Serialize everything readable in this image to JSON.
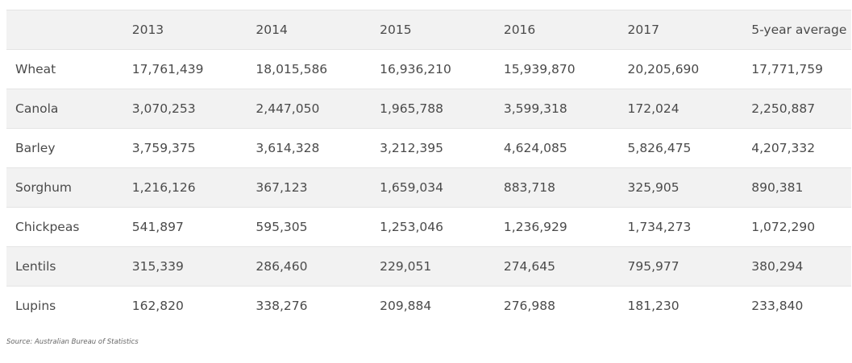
{
  "table": {
    "headers": [
      "",
      "2013",
      "2014",
      "2015",
      "2016",
      "2017",
      "5-year average"
    ],
    "rows": [
      [
        "Wheat",
        "17,761,439",
        "18,015,586",
        "16,936,210",
        "15,939,870",
        "20,205,690",
        "17,771,759"
      ],
      [
        "Canola",
        "3,070,253",
        "2,447,050",
        "1,965,788",
        "3,599,318",
        "172,024",
        "2,250,887"
      ],
      [
        "Barley",
        "3,759,375",
        "3,614,328",
        "3,212,395",
        "4,624,085",
        "5,826,475",
        "4,207,332"
      ],
      [
        "Sorghum",
        "1,216,126",
        "367,123",
        "1,659,034",
        "883,718",
        "325,905",
        "890,381"
      ],
      [
        "Chickpeas",
        "541,897",
        "595,305",
        "1,253,046",
        "1,236,929",
        "1,734,273",
        "1,072,290"
      ],
      [
        "Lentils",
        "315,339",
        "286,460",
        "229,051",
        "274,645",
        "795,977",
        "380,294"
      ],
      [
        "Lupins",
        "162,820",
        "338,276",
        "209,884",
        "276,988",
        "181,230",
        "233,840"
      ]
    ]
  },
  "source": "Source: Australian Bureau of Statistics"
}
